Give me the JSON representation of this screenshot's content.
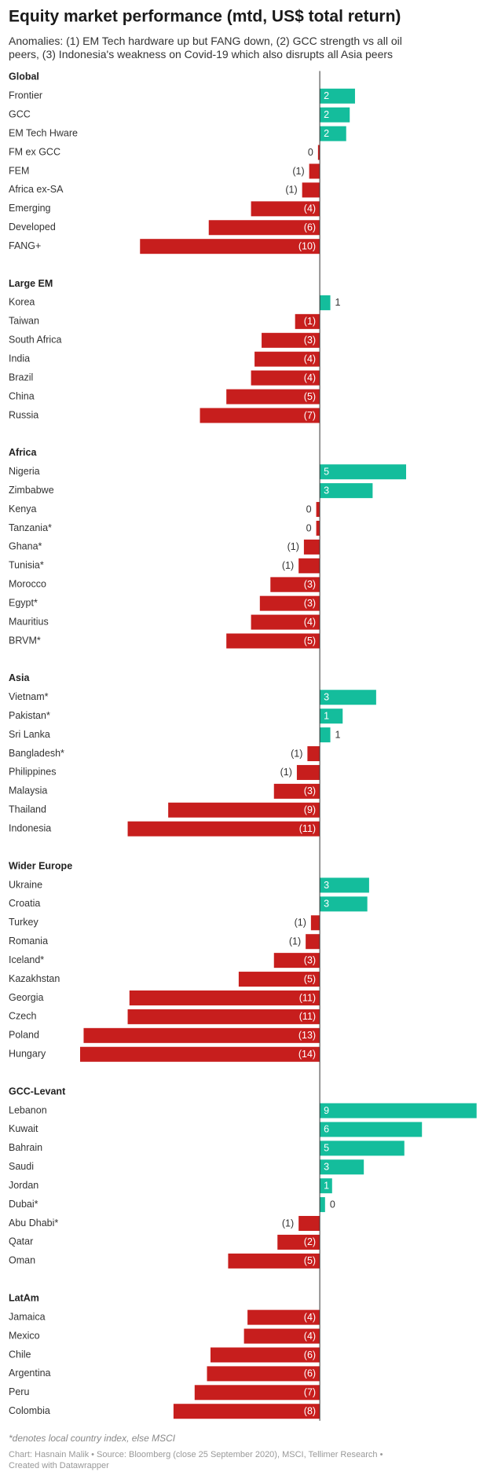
{
  "chart_data": {
    "type": "bar",
    "title": "Equity market performance (mtd, US$ total return)",
    "subtitle": "Anomalies: (1) EM Tech hardware up but FANG down, (2) GCC strength vs all oil peers, (3) Indonesia's weakness on Covid-19 which also disrupts all Asia peers",
    "colors": {
      "positive": "#14bd9c",
      "negative": "#c71e1d"
    },
    "xlim": [
      -14,
      9
    ],
    "groups": [
      {
        "name": "Global",
        "categories": [
          "Frontier",
          "GCC",
          "EM Tech Hware",
          "FM ex GCC",
          "FEM",
          "Africa ex-SA",
          "Emerging",
          "Developed",
          "FANG+"
        ],
        "values": [
          2.0,
          1.7,
          1.5,
          -0.1,
          -0.6,
          -1.0,
          -3.9,
          -6.3,
          -10.2
        ],
        "value_labels": [
          "2",
          "2",
          "2",
          "0",
          "(1)",
          "(1)",
          "(4)",
          "(6)",
          "(10)"
        ]
      },
      {
        "name": "Large EM",
        "categories": [
          "Korea",
          "Taiwan",
          "South Africa",
          "India",
          "Brazil",
          "China",
          "Russia"
        ],
        "values": [
          0.6,
          -1.4,
          -3.3,
          -3.7,
          -3.9,
          -5.3,
          -6.8
        ],
        "value_labels": [
          "1",
          "(1)",
          "(3)",
          "(4)",
          "(4)",
          "(5)",
          "(7)"
        ]
      },
      {
        "name": "Africa",
        "categories": [
          "Nigeria",
          "Zimbabwe",
          "Kenya",
          "Tanzania*",
          "Ghana*",
          "Tunisia*",
          "Morocco",
          "Egypt*",
          "Mauritius",
          "BRVM*"
        ],
        "values": [
          4.9,
          3.0,
          -0.2,
          -0.2,
          -0.9,
          -1.2,
          -2.8,
          -3.4,
          -3.9,
          -5.3
        ],
        "value_labels": [
          "5",
          "3",
          "0",
          "0",
          "(1)",
          "(1)",
          "(3)",
          "(3)",
          "(4)",
          "(5)"
        ]
      },
      {
        "name": "Asia",
        "categories": [
          "Vietnam*",
          "Pakistan*",
          "Sri Lanka",
          "Bangladesh*",
          "Philippines",
          "Malaysia",
          "Thailand",
          "Indonesia"
        ],
        "values": [
          3.2,
          1.3,
          0.6,
          -0.7,
          -1.3,
          -2.6,
          -8.6,
          -10.9
        ],
        "value_labels": [
          "3",
          "1",
          "1",
          "(1)",
          "(1)",
          "(3)",
          "(9)",
          "(11)"
        ]
      },
      {
        "name": "Wider Europe",
        "categories": [
          "Ukraine",
          "Croatia",
          "Turkey",
          "Romania",
          "Iceland*",
          "Kazakhstan",
          "Georgia",
          "Czech",
          "Poland",
          "Hungary"
        ],
        "values": [
          2.8,
          2.7,
          -0.5,
          -0.8,
          -2.6,
          -4.6,
          -10.8,
          -10.9,
          -13.4,
          -13.6
        ],
        "value_labels": [
          "3",
          "3",
          "(1)",
          "(1)",
          "(3)",
          "(5)",
          "(11)",
          "(11)",
          "(13)",
          "(14)"
        ]
      },
      {
        "name": "GCC-Levant",
        "categories": [
          "Lebanon",
          "Kuwait",
          "Bahrain",
          "Saudi",
          "Jordan",
          "Dubai*",
          "Abu Dhabi*",
          "Qatar",
          "Oman"
        ],
        "values": [
          8.9,
          5.8,
          4.8,
          2.5,
          0.7,
          0.3,
          -1.2,
          -2.4,
          -5.2
        ],
        "value_labels": [
          "9",
          "6",
          "5",
          "3",
          "1",
          "0",
          "(1)",
          "(2)",
          "(5)"
        ]
      },
      {
        "name": "LatAm",
        "categories": [
          "Jamaica",
          "Mexico",
          "Chile",
          "Argentina",
          "Peru",
          "Colombia"
        ],
        "values": [
          -4.1,
          -4.3,
          -6.2,
          -6.4,
          -7.1,
          -8.3
        ],
        "value_labels": [
          "(4)",
          "(4)",
          "(6)",
          "(6)",
          "(7)",
          "(8)"
        ]
      }
    ],
    "notes": "*denotes local country index, else MSCI",
    "source": "Chart: Hasnain Malik • Source: Bloomberg (close 25 September 2020), MSCI, Tellimer Research •",
    "credit": "Created with Datawrapper"
  }
}
